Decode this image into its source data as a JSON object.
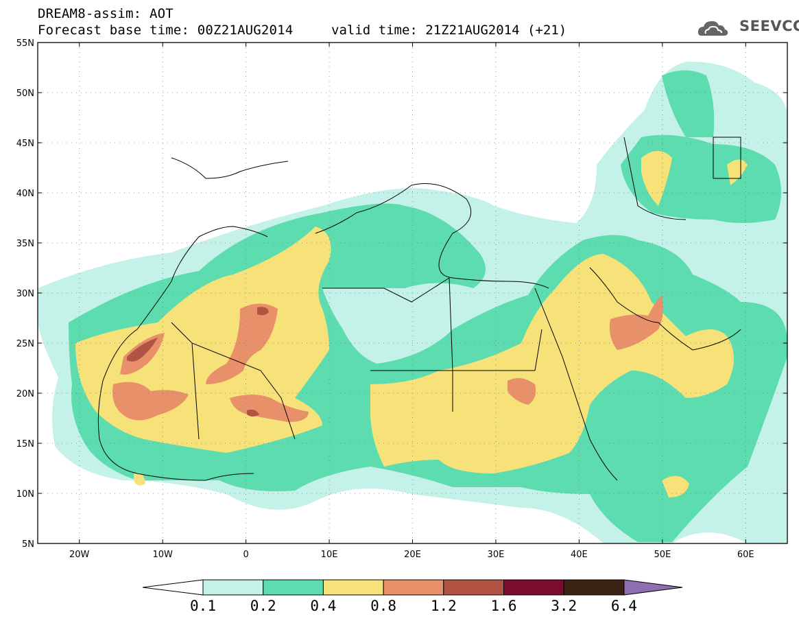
{
  "header": {
    "title_line1": "DREAM8-assim: AOT",
    "title_line2": "Forecast base time: 00Z21AUG2014",
    "valid_time": "valid time: 21Z21AUG2014 (+21)",
    "logo_text": "SEEVCCC"
  },
  "map": {
    "lon_range": [
      -25,
      65
    ],
    "lat_range": [
      5,
      55
    ],
    "lat_labels": [
      "55N",
      "50N",
      "45N",
      "40N",
      "35N",
      "30N",
      "25N",
      "20N",
      "15N",
      "10N",
      "5N"
    ],
    "lon_labels": [
      "20W",
      "10W",
      "0",
      "10E",
      "20E",
      "30E",
      "40E",
      "50E",
      "60E"
    ],
    "gridlines": true
  },
  "colorbar": {
    "labels": [
      "0.1",
      "0.2",
      "0.4",
      "0.8",
      "1.2",
      "1.6",
      "3.2",
      "6.4"
    ],
    "colors": [
      "#ffffff",
      "#c4f2e8",
      "#5ddcb0",
      "#f7e27a",
      "#e8906a",
      "#b35343",
      "#7b0c2e",
      "#3a2414",
      "#8e6fb0"
    ]
  }
}
